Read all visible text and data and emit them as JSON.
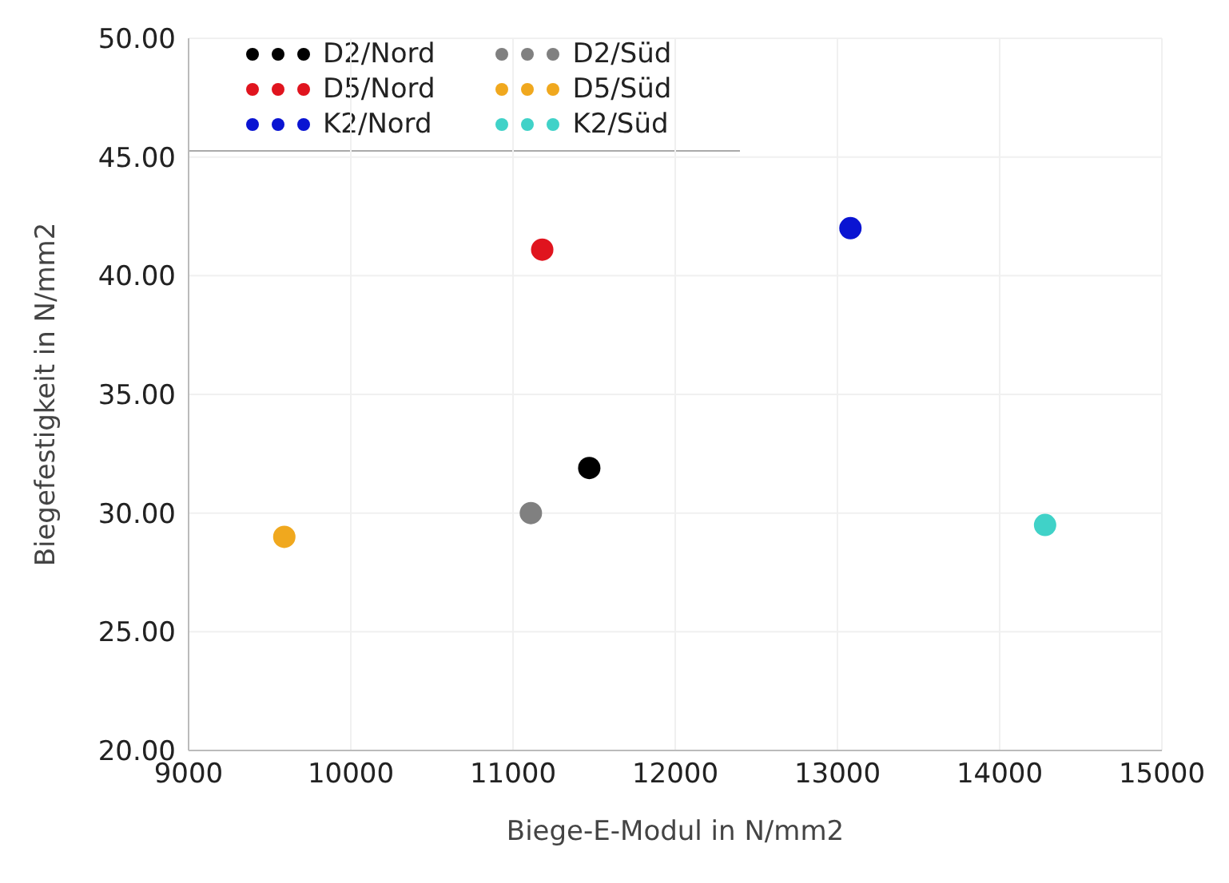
{
  "chart_data": {
    "type": "scatter",
    "xlabel": "Biege-E-Modul in N/mm2",
    "ylabel": "Biegefestigkeit in N/mm2",
    "xlim": [
      9000,
      15000
    ],
    "xticks": [
      9000,
      10000,
      11000,
      12000,
      13000,
      14000,
      15000
    ],
    "ylim": [
      20,
      50
    ],
    "yticks": [
      {
        "value": 20,
        "label": "20.00"
      },
      {
        "value": 25,
        "label": "25.00"
      },
      {
        "value": 30,
        "label": "30.00"
      },
      {
        "value": 35,
        "label": "35.00"
      },
      {
        "value": 40,
        "label": "40.00"
      },
      {
        "value": 45,
        "label": "45.00"
      },
      {
        "value": 50,
        "label": "50.00"
      }
    ],
    "grid": true,
    "legend": "top left",
    "marker": "circle",
    "series": [
      {
        "name": "D2/Nord",
        "color": "#000000",
        "x": [
          11470
        ],
        "values": [
          31.9
        ]
      },
      {
        "name": "D2/Süd",
        "color": "#808080",
        "x": [
          11110
        ],
        "values": [
          30.0
        ]
      },
      {
        "name": "D5/Nord",
        "color": "#e0141e",
        "x": [
          11180
        ],
        "values": [
          41.1
        ]
      },
      {
        "name": "D5/Süd",
        "color": "#f0a81e",
        "x": [
          9590
        ],
        "values": [
          29.0
        ]
      },
      {
        "name": "K2/Nord",
        "color": "#0a14d2",
        "x": [
          13080
        ],
        "values": [
          42.0
        ]
      },
      {
        "name": "K2/Süd",
        "color": "#40d2c8",
        "x": [
          14280
        ],
        "values": [
          29.5
        ]
      }
    ]
  }
}
